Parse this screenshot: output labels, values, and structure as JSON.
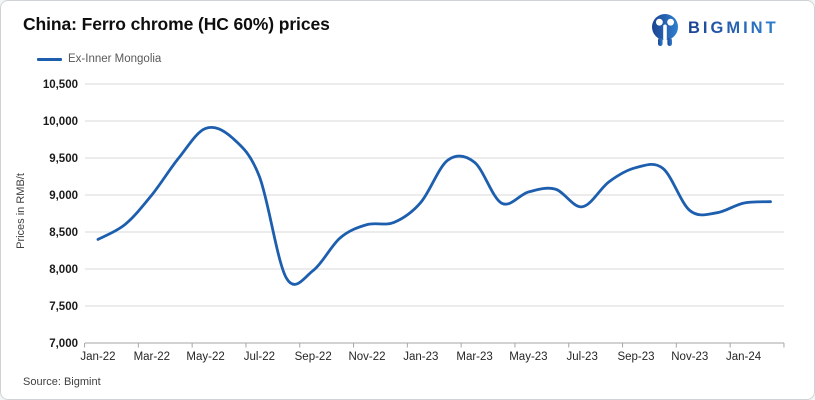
{
  "header": {
    "title": "China: Ferro chrome (HC 60%) prices",
    "logo_text": "BIGMINT"
  },
  "legend": {
    "label": "Ex-Inner Mongolia"
  },
  "footer": {
    "source": "Source: Bigmint"
  },
  "colors": {
    "series_blue": "#1d5fae",
    "logo_navy": "#1c4392",
    "logo_blue": "#2f80d0",
    "gridline": "#d9d9d9",
    "axis": "#a6a6a6"
  },
  "chart_data": {
    "type": "line",
    "title": "China: Ferro chrome (HC 60%) prices",
    "ylabel": "Prices in RMB/t",
    "unit": "RMB/t",
    "ylim": [
      7000,
      10500
    ],
    "ytick_step": 500,
    "ytick_labels": [
      "7,000",
      "7,500",
      "8,000",
      "8,500",
      "9,000",
      "9,500",
      "10,000",
      "10,500"
    ],
    "xtick_labels": [
      "Jan-22",
      "Mar-22",
      "May-22",
      "Jul-22",
      "Sep-22",
      "Nov-22",
      "Jan-23",
      "Mar-23",
      "May-23",
      "Jul-23",
      "Sep-23",
      "Nov-23",
      "Jan-24"
    ],
    "x": [
      "Jan-22",
      "Feb-22",
      "Mar-22",
      "Apr-22",
      "May-22",
      "Jun-22",
      "Jul-22",
      "Aug-22",
      "Sep-22",
      "Oct-22",
      "Nov-22",
      "Dec-22",
      "Jan-23",
      "Feb-23",
      "Mar-23",
      "Apr-23",
      "May-23",
      "Jun-23",
      "Jul-23",
      "Aug-23",
      "Sep-23",
      "Oct-23",
      "Nov-23",
      "Dec-23",
      "Jan-24",
      "Feb-24"
    ],
    "series": [
      {
        "name": "Ex-Inner Mongolia",
        "color": "#1d5fae",
        "values": [
          8400,
          8600,
          9000,
          9500,
          9900,
          9770,
          9250,
          7880,
          7980,
          8420,
          8600,
          8630,
          8900,
          9470,
          9440,
          8890,
          9040,
          9080,
          8840,
          9180,
          9370,
          9360,
          8790,
          8760,
          8890,
          8910
        ]
      }
    ],
    "grid": "horizontal",
    "smooth": true,
    "legend_position": "top-left",
    "source": "Source: Bigmint"
  }
}
